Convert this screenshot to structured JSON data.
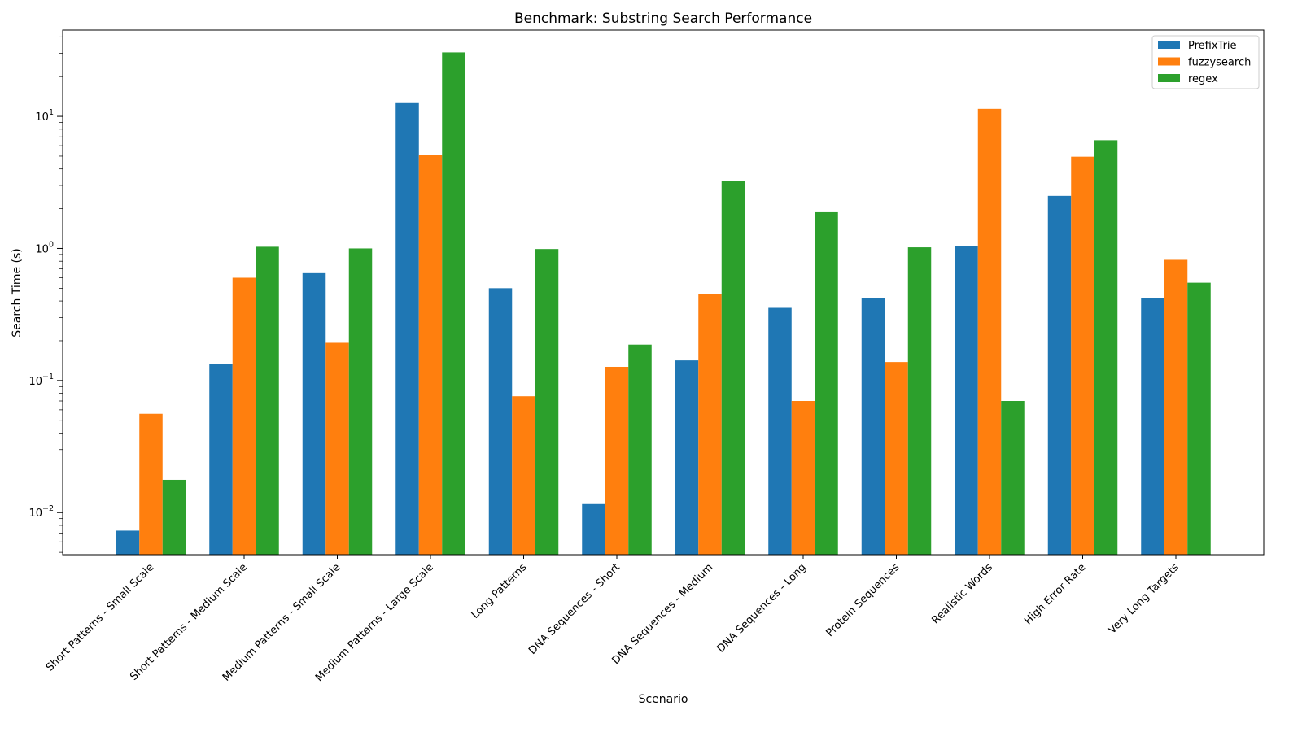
{
  "chart_data": {
    "type": "bar",
    "title": "Benchmark: Substring Search Performance",
    "xlabel": "Scenario",
    "ylabel": "Search Time (s)",
    "yscale": "log",
    "ylim": [
      0.0048,
      45
    ],
    "y_ticks": [
      {
        "value": 0.01,
        "base": "10",
        "exp": "−2"
      },
      {
        "value": 0.1,
        "base": "10",
        "exp": "−1"
      },
      {
        "value": 1,
        "base": "10",
        "exp": "0"
      },
      {
        "value": 10,
        "base": "10",
        "exp": "1"
      }
    ],
    "grid": false,
    "legend_position": "top-right",
    "categories": [
      "Short Patterns - Small Scale",
      "Short Patterns - Medium Scale",
      "Medium Patterns - Small Scale",
      "Medium Patterns - Large Scale",
      "Long Patterns",
      "DNA Sequences - Short",
      "DNA Sequences - Medium",
      "DNA Sequences - Long",
      "Protein Sequences",
      "Realistic Words",
      "High Error Rate",
      "Very Long Targets"
    ],
    "series": [
      {
        "name": "PrefixTrie",
        "color": "#1f77b4",
        "values": [
          0.0073,
          0.133,
          0.65,
          12.6,
          0.5,
          0.0116,
          0.142,
          0.355,
          0.42,
          1.05,
          2.5,
          0.42
        ]
      },
      {
        "name": "fuzzysearch",
        "color": "#ff7f0e",
        "values": [
          0.056,
          0.6,
          0.193,
          5.1,
          0.076,
          0.127,
          0.455,
          0.07,
          0.138,
          11.4,
          4.95,
          0.82
        ]
      },
      {
        "name": "regex",
        "color": "#2ca02c",
        "values": [
          0.0177,
          1.03,
          1.0,
          30.5,
          0.99,
          0.187,
          3.25,
          1.88,
          1.02,
          0.07,
          6.6,
          0.55
        ]
      }
    ]
  }
}
